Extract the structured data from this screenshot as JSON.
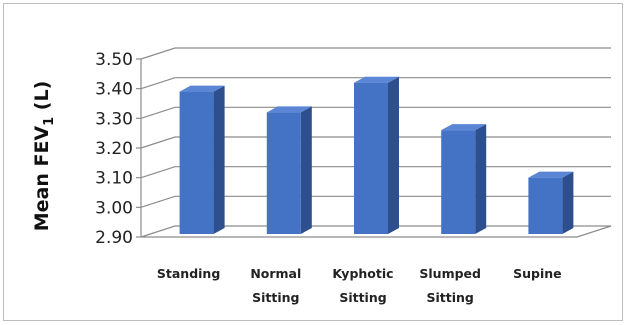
{
  "chart_data": {
    "type": "bar",
    "style": "3d-column",
    "ylabel": "Mean FEV1 (L)",
    "ylabel_main": "Mean FEV",
    "ylabel_sub": "1",
    "ylabel_unit": " (L)",
    "ylim": [
      2.9,
      3.5
    ],
    "yticks": [
      "2.90",
      "3.00",
      "3.10",
      "3.20",
      "3.30",
      "3.40",
      "3.50"
    ],
    "grid": true,
    "legend": "none",
    "categories": [
      [
        "Standing"
      ],
      [
        "Normal",
        "Sitting"
      ],
      [
        "Kyphotic",
        "Sitting"
      ],
      [
        "Slumped",
        "Sitting"
      ],
      [
        "Supine"
      ]
    ],
    "values": [
      3.38,
      3.31,
      3.41,
      3.25,
      3.09
    ]
  },
  "colors": {
    "bar_front": "#4472c4",
    "bar_side": "#2e4f8e",
    "bar_top": "#5b86d6",
    "grid": "#8c8c8c"
  }
}
